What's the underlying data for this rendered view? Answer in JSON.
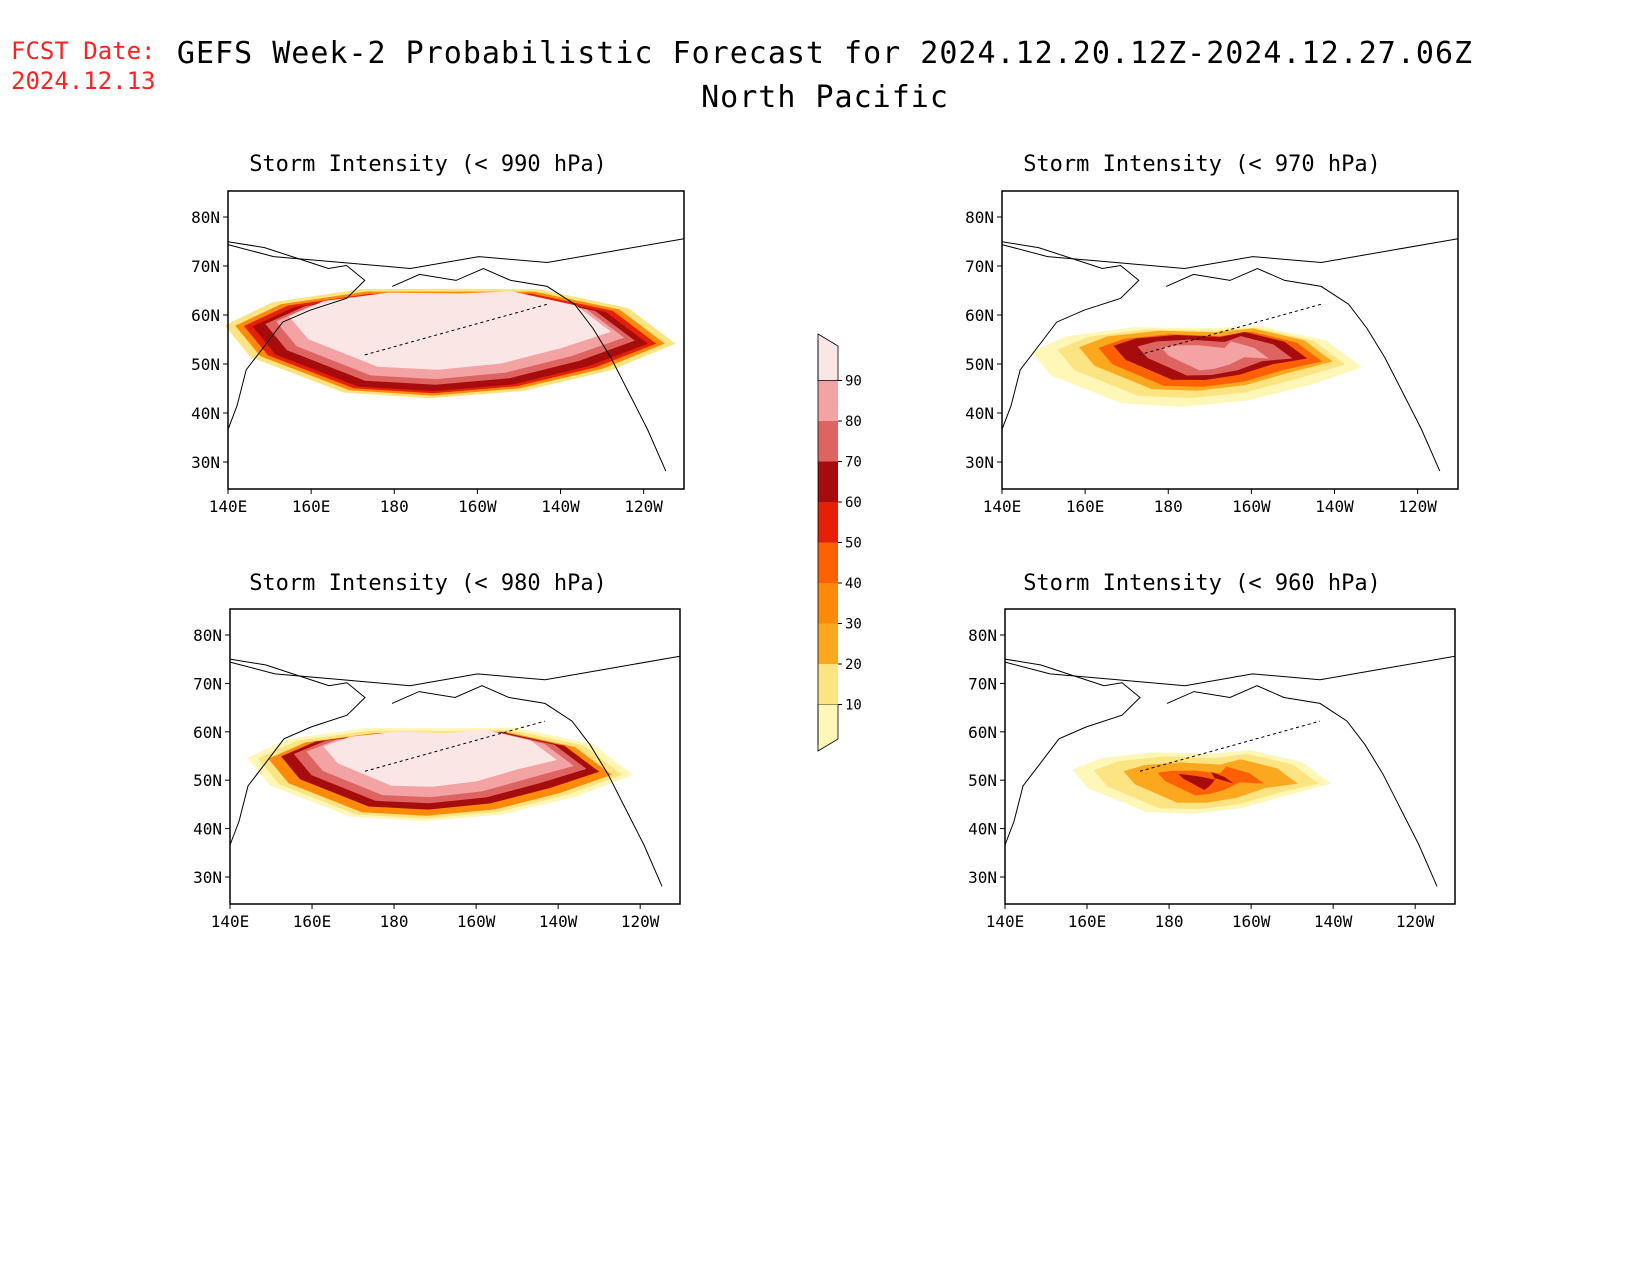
{
  "header": {
    "fcst_label": "FCST Date:",
    "fcst_date": "2024.12.13",
    "title": "GEFS Week-2 Probabilistic Forecast for 2024.12.20.12Z-2024.12.27.06Z",
    "subtitle": "North Pacific"
  },
  "chart_data": {
    "type": "heatmap",
    "lon_ticks": [
      "140E",
      "160E",
      "180",
      "160W",
      "140W",
      "120W"
    ],
    "lat_ticks": [
      "80N",
      "70N",
      "60N",
      "50N",
      "40N",
      "30N"
    ],
    "colorbar": {
      "levels": [
        10,
        20,
        30,
        40,
        50,
        60,
        70,
        80,
        90
      ],
      "colors": [
        "#fff7b8",
        "#fde483",
        "#fca81f",
        "#fd8a09",
        "#fe6003",
        "#e52007",
        "#a70c0c",
        "#de6462",
        "#f4a3a4",
        "#fbe6e6"
      ]
    },
    "panels": [
      {
        "id": "p990",
        "title": "Storm Intensity (< 990 hPa)"
      },
      {
        "id": "p970",
        "title": "Storm Intensity (< 970 hPa)"
      },
      {
        "id": "p980",
        "title": "Storm Intensity (< 980 hPa)"
      },
      {
        "id": "p960",
        "title": "Storm Intensity (< 960 hPa)"
      }
    ]
  }
}
